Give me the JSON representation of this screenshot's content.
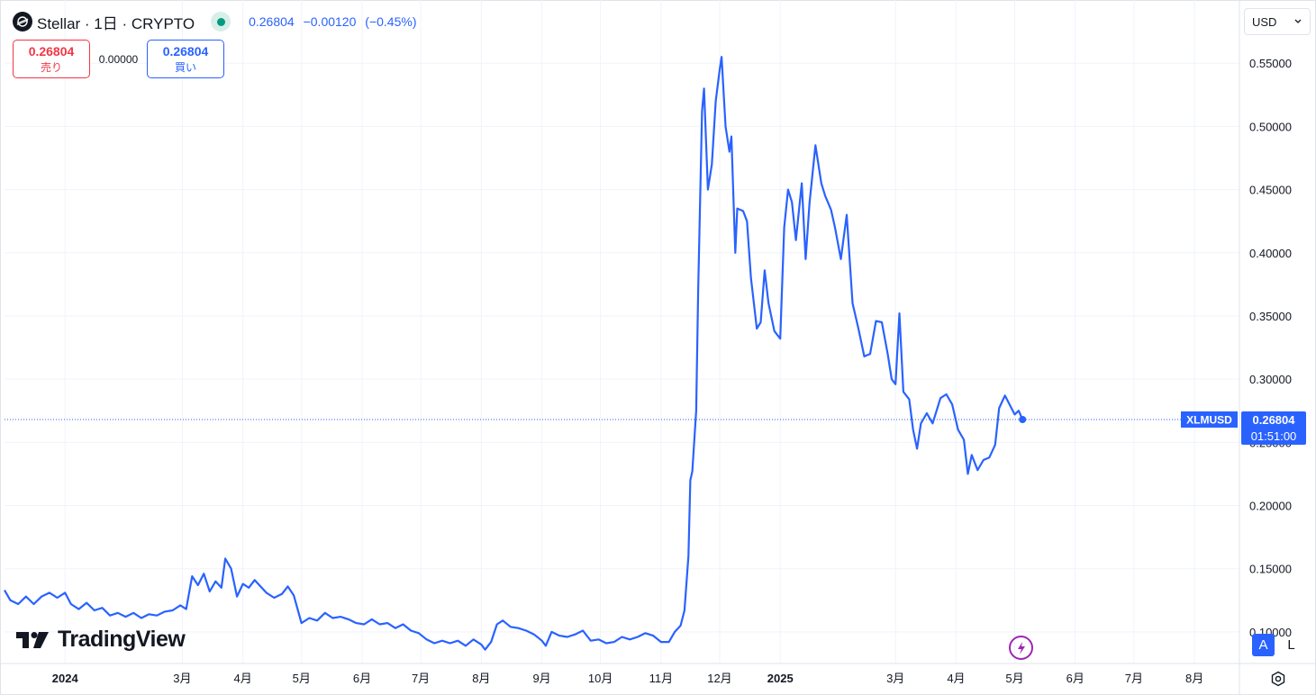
{
  "header": {
    "title": "Stellar · 1日 · CRYPTO",
    "last": "0.26804",
    "change": "−0.00120",
    "change_pct": "(−0.45%)"
  },
  "trade": {
    "sell_price": "0.26804",
    "sell_label": "売り",
    "spread": "0.00000",
    "buy_price": "0.26804",
    "buy_label": "買い"
  },
  "currency": "USD",
  "branding": "TradingView",
  "scale_buttons": {
    "auto": "A",
    "log": "L"
  },
  "price_label": {
    "symbol": "XLMUSD",
    "price": "0.26804",
    "countdown": "01:51:00"
  },
  "colors": {
    "line": "#2962ff",
    "grid": "#f0f3fa",
    "text": "#131722",
    "sell": "#f23645",
    "buy": "#2962ff",
    "live_dot": "#089981"
  },
  "icons": [
    "stellar-logo-icon",
    "market-status-icon",
    "chevron-down-icon",
    "tradingview-logo-icon",
    "flash-icon",
    "settings-icon"
  ],
  "chart_data": {
    "type": "line",
    "title": "Stellar · 1日 · CRYPTO",
    "xlabel": "",
    "ylabel": "",
    "ylim": [
      0.075,
      0.6
    ],
    "y_ticks": [
      "0.55000",
      "0.50000",
      "0.45000",
      "0.40000",
      "0.35000",
      "0.30000",
      "0.25000",
      "0.20000",
      "0.15000",
      "0.10000"
    ],
    "y_tick_values": [
      0.55,
      0.5,
      0.45,
      0.4,
      0.35,
      0.3,
      0.25,
      0.2,
      0.15,
      0.1
    ],
    "x_ticks": [
      {
        "label": "2024",
        "date": "2024-01-01",
        "bold": true
      },
      {
        "label": "3月",
        "date": "2024-03-01"
      },
      {
        "label": "4月",
        "date": "2024-04-01"
      },
      {
        "label": "5月",
        "date": "2024-05-01"
      },
      {
        "label": "6月",
        "date": "2024-06-01"
      },
      {
        "label": "7月",
        "date": "2024-07-01"
      },
      {
        "label": "8月",
        "date": "2024-08-01"
      },
      {
        "label": "9月",
        "date": "2024-09-01"
      },
      {
        "label": "10月",
        "date": "2024-10-01"
      },
      {
        "label": "11月",
        "date": "2024-11-01"
      },
      {
        "label": "12月",
        "date": "2024-12-01"
      },
      {
        "label": "2025",
        "date": "2025-01-01",
        "bold": true
      },
      {
        "label": "3月",
        "date": "2025-03-01"
      },
      {
        "label": "4月",
        "date": "2025-04-01"
      },
      {
        "label": "5月",
        "date": "2025-05-01"
      },
      {
        "label": "6月",
        "date": "2025-06-01"
      },
      {
        "label": "7月",
        "date": "2025-07-01"
      },
      {
        "label": "8月",
        "date": "2025-08-01"
      }
    ],
    "xlim": [
      "2023-12-01",
      "2025-08-24"
    ],
    "last_value": 0.26804,
    "grid": true,
    "series": [
      {
        "points": [
          [
            "2023-12-01",
            0.133
          ],
          [
            "2023-12-04",
            0.125
          ],
          [
            "2023-12-08",
            0.122
          ],
          [
            "2023-12-12",
            0.128
          ],
          [
            "2023-12-16",
            0.122
          ],
          [
            "2023-12-20",
            0.128
          ],
          [
            "2023-12-24",
            0.131
          ],
          [
            "2023-12-28",
            0.127
          ],
          [
            "2024-01-01",
            0.131
          ],
          [
            "2024-01-04",
            0.122
          ],
          [
            "2024-01-08",
            0.118
          ],
          [
            "2024-01-12",
            0.123
          ],
          [
            "2024-01-16",
            0.117
          ],
          [
            "2024-01-20",
            0.119
          ],
          [
            "2024-01-24",
            0.113
          ],
          [
            "2024-01-28",
            0.115
          ],
          [
            "2024-02-01",
            0.112
          ],
          [
            "2024-02-05",
            0.115
          ],
          [
            "2024-02-09",
            0.111
          ],
          [
            "2024-02-13",
            0.114
          ],
          [
            "2024-02-17",
            0.113
          ],
          [
            "2024-02-21",
            0.116
          ],
          [
            "2024-02-25",
            0.117
          ],
          [
            "2024-02-29",
            0.121
          ],
          [
            "2024-03-03",
            0.118
          ],
          [
            "2024-03-06",
            0.144
          ],
          [
            "2024-03-09",
            0.137
          ],
          [
            "2024-03-12",
            0.146
          ],
          [
            "2024-03-15",
            0.132
          ],
          [
            "2024-03-18",
            0.14
          ],
          [
            "2024-03-21",
            0.135
          ],
          [
            "2024-03-23",
            0.158
          ],
          [
            "2024-03-26",
            0.15
          ],
          [
            "2024-03-29",
            0.128
          ],
          [
            "2024-04-01",
            0.138
          ],
          [
            "2024-04-04",
            0.135
          ],
          [
            "2024-04-07",
            0.141
          ],
          [
            "2024-04-10",
            0.136
          ],
          [
            "2024-04-13",
            0.131
          ],
          [
            "2024-04-17",
            0.127
          ],
          [
            "2024-04-21",
            0.13
          ],
          [
            "2024-04-24",
            0.136
          ],
          [
            "2024-04-27",
            0.129
          ],
          [
            "2024-05-01",
            0.107
          ],
          [
            "2024-05-05",
            0.111
          ],
          [
            "2024-05-09",
            0.109
          ],
          [
            "2024-05-13",
            0.115
          ],
          [
            "2024-05-17",
            0.111
          ],
          [
            "2024-05-21",
            0.112
          ],
          [
            "2024-05-25",
            0.11
          ],
          [
            "2024-05-29",
            0.107
          ],
          [
            "2024-06-02",
            0.106
          ],
          [
            "2024-06-06",
            0.11
          ],
          [
            "2024-06-10",
            0.106
          ],
          [
            "2024-06-14",
            0.107
          ],
          [
            "2024-06-18",
            0.103
          ],
          [
            "2024-06-22",
            0.106
          ],
          [
            "2024-06-26",
            0.101
          ],
          [
            "2024-06-30",
            0.099
          ],
          [
            "2024-07-04",
            0.094
          ],
          [
            "2024-07-08",
            0.091
          ],
          [
            "2024-07-12",
            0.093
          ],
          [
            "2024-07-16",
            0.091
          ],
          [
            "2024-07-20",
            0.093
          ],
          [
            "2024-07-24",
            0.089
          ],
          [
            "2024-07-28",
            0.094
          ],
          [
            "2024-08-01",
            0.09
          ],
          [
            "2024-08-03",
            0.086
          ],
          [
            "2024-08-06",
            0.092
          ],
          [
            "2024-08-09",
            0.106
          ],
          [
            "2024-08-12",
            0.109
          ],
          [
            "2024-08-16",
            0.104
          ],
          [
            "2024-08-20",
            0.103
          ],
          [
            "2024-08-24",
            0.101
          ],
          [
            "2024-08-28",
            0.098
          ],
          [
            "2024-09-01",
            0.093
          ],
          [
            "2024-09-03",
            0.089
          ],
          [
            "2024-09-06",
            0.1
          ],
          [
            "2024-09-10",
            0.097
          ],
          [
            "2024-09-14",
            0.096
          ],
          [
            "2024-09-18",
            0.098
          ],
          [
            "2024-09-22",
            0.101
          ],
          [
            "2024-09-26",
            0.093
          ],
          [
            "2024-09-30",
            0.094
          ],
          [
            "2024-10-04",
            0.091
          ],
          [
            "2024-10-08",
            0.092
          ],
          [
            "2024-10-12",
            0.096
          ],
          [
            "2024-10-16",
            0.094
          ],
          [
            "2024-10-20",
            0.096
          ],
          [
            "2024-10-24",
            0.099
          ],
          [
            "2024-10-28",
            0.097
          ],
          [
            "2024-11-01",
            0.092
          ],
          [
            "2024-11-05",
            0.092
          ],
          [
            "2024-11-08",
            0.1
          ],
          [
            "2024-11-11",
            0.105
          ],
          [
            "2024-11-13",
            0.117
          ],
          [
            "2024-11-15",
            0.16
          ],
          [
            "2024-11-16",
            0.22
          ],
          [
            "2024-11-17",
            0.227
          ],
          [
            "2024-11-19",
            0.275
          ],
          [
            "2024-11-20",
            0.37
          ],
          [
            "2024-11-22",
            0.512
          ],
          [
            "2024-11-23",
            0.53
          ],
          [
            "2024-11-25",
            0.45
          ],
          [
            "2024-11-27",
            0.47
          ],
          [
            "2024-11-29",
            0.52
          ],
          [
            "2024-12-01",
            0.545
          ],
          [
            "2024-12-02",
            0.555
          ],
          [
            "2024-12-04",
            0.5
          ],
          [
            "2024-12-06",
            0.48
          ],
          [
            "2024-12-07",
            0.492
          ],
          [
            "2024-12-09",
            0.4
          ],
          [
            "2024-12-10",
            0.435
          ],
          [
            "2024-12-13",
            0.433
          ],
          [
            "2024-12-15",
            0.425
          ],
          [
            "2024-12-17",
            0.38
          ],
          [
            "2024-12-20",
            0.34
          ],
          [
            "2024-12-22",
            0.345
          ],
          [
            "2024-12-24",
            0.386
          ],
          [
            "2024-12-26",
            0.36
          ],
          [
            "2024-12-29",
            0.338
          ],
          [
            "2025-01-01",
            0.332
          ],
          [
            "2025-01-03",
            0.42
          ],
          [
            "2025-01-05",
            0.45
          ],
          [
            "2025-01-07",
            0.44
          ],
          [
            "2025-01-09",
            0.41
          ],
          [
            "2025-01-12",
            0.455
          ],
          [
            "2025-01-14",
            0.395
          ],
          [
            "2025-01-16",
            0.44
          ],
          [
            "2025-01-19",
            0.485
          ],
          [
            "2025-01-22",
            0.455
          ],
          [
            "2025-01-24",
            0.445
          ],
          [
            "2025-01-27",
            0.434
          ],
          [
            "2025-01-29",
            0.42
          ],
          [
            "2025-02-01",
            0.395
          ],
          [
            "2025-02-04",
            0.43
          ],
          [
            "2025-02-07",
            0.36
          ],
          [
            "2025-02-10",
            0.34
          ],
          [
            "2025-02-13",
            0.318
          ],
          [
            "2025-02-16",
            0.32
          ],
          [
            "2025-02-19",
            0.346
          ],
          [
            "2025-02-22",
            0.345
          ],
          [
            "2025-02-25",
            0.32
          ],
          [
            "2025-02-27",
            0.3
          ],
          [
            "2025-03-01",
            0.296
          ],
          [
            "2025-03-03",
            0.352
          ],
          [
            "2025-03-05",
            0.29
          ],
          [
            "2025-03-08",
            0.284
          ],
          [
            "2025-03-10",
            0.26
          ],
          [
            "2025-03-12",
            0.245
          ],
          [
            "2025-03-14",
            0.265
          ],
          [
            "2025-03-17",
            0.273
          ],
          [
            "2025-03-20",
            0.265
          ],
          [
            "2025-03-24",
            0.285
          ],
          [
            "2025-03-27",
            0.288
          ],
          [
            "2025-03-30",
            0.28
          ],
          [
            "2025-04-02",
            0.26
          ],
          [
            "2025-04-05",
            0.252
          ],
          [
            "2025-04-07",
            0.225
          ],
          [
            "2025-04-09",
            0.24
          ],
          [
            "2025-04-12",
            0.228
          ],
          [
            "2025-04-15",
            0.236
          ],
          [
            "2025-04-18",
            0.238
          ],
          [
            "2025-04-21",
            0.248
          ],
          [
            "2025-04-23",
            0.277
          ],
          [
            "2025-04-26",
            0.287
          ],
          [
            "2025-04-28",
            0.281
          ],
          [
            "2025-05-01",
            0.272
          ],
          [
            "2025-05-03",
            0.275
          ],
          [
            "2025-05-05",
            0.26804
          ]
        ]
      }
    ]
  }
}
